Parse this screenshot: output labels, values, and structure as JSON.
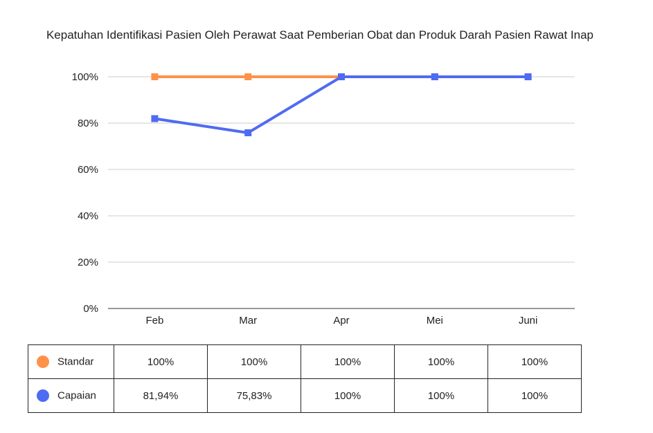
{
  "chart_data": {
    "type": "line",
    "title": "Kepatuhan Identifikasi Pasien Oleh Perawat Saat Pemberian Obat dan Produk Darah Pasien Rawat Inap",
    "categories": [
      "Feb",
      "Mar",
      "Apr",
      "Mei",
      "Juni"
    ],
    "ylim": [
      0,
      100
    ],
    "yticks": [
      0,
      20,
      40,
      60,
      80,
      100
    ],
    "ytick_labels": [
      "0%",
      "20%",
      "40%",
      "60%",
      "80%",
      "100%"
    ],
    "grid": true,
    "legend": "bottom-table",
    "series": [
      {
        "name": "Standar",
        "color": "#FF9149",
        "values": [
          100,
          100,
          100,
          100,
          100
        ],
        "labels": [
          "100%",
          "100%",
          "100%",
          "100%",
          "100%"
        ]
      },
      {
        "name": "Capaian",
        "color": "#4F6BF2",
        "values": [
          81.94,
          75.83,
          100,
          100,
          100
        ],
        "labels": [
          "81,94%",
          "75,83%",
          "100%",
          "100%",
          "100%"
        ]
      }
    ]
  }
}
